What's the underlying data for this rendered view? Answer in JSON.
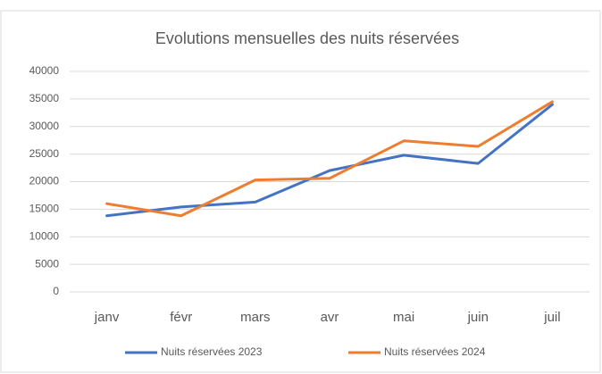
{
  "chart_data": {
    "type": "line",
    "title": "Evolutions mensuelles des nuits réservées",
    "categories": [
      "janv",
      "févr",
      "mars",
      "avr",
      "mai",
      "juin",
      "juil"
    ],
    "series": [
      {
        "name": "Nuits réservées 2023",
        "color": "#4472c4",
        "values": [
          13800,
          15400,
          16300,
          22000,
          24800,
          23300,
          34000
        ]
      },
      {
        "name": "Nuits réservées 2024",
        "color": "#ed7d31",
        "values": [
          16000,
          13800,
          20300,
          20600,
          27400,
          26400,
          34500
        ]
      }
    ],
    "ylim": [
      0,
      40000
    ],
    "yticks": [
      0,
      5000,
      10000,
      15000,
      20000,
      25000,
      30000,
      35000,
      40000
    ],
    "grid": true,
    "legend": "bottom"
  }
}
